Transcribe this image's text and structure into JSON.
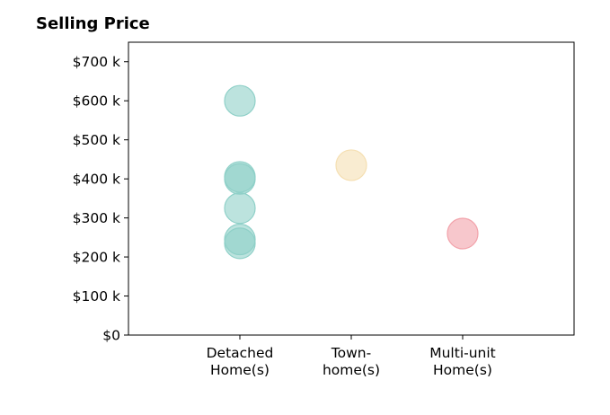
{
  "chart_data": {
    "type": "scatter",
    "title": "Selling Price",
    "xlabel": "",
    "ylabel": "",
    "categories": [
      [
        "Detached",
        "Home(s)"
      ],
      [
        "Town-",
        "home(s)"
      ],
      [
        "Multi-unit",
        "Home(s)"
      ]
    ],
    "ylim": [
      0,
      750000
    ],
    "yticks": [
      {
        "value": 0,
        "label": "$0"
      },
      {
        "value": 100000,
        "label": "$100 k"
      },
      {
        "value": 200000,
        "label": "$200 k"
      },
      {
        "value": 300000,
        "label": "$300 k"
      },
      {
        "value": 400000,
        "label": "$400 k"
      },
      {
        "value": 500000,
        "label": "$500 k"
      },
      {
        "value": 600000,
        "label": "$600 k"
      },
      {
        "value": 700000,
        "label": "$700 k"
      }
    ],
    "grid": false,
    "series": [
      {
        "category": 0,
        "color": "#8fd0c8",
        "values": [
          600000,
          405000,
          400000,
          325000,
          245000,
          235000
        ]
      },
      {
        "category": 1,
        "color": "#f5dfb2",
        "values": [
          435000
        ]
      },
      {
        "category": 2,
        "color": "#f2a2aa",
        "values": [
          260000
        ]
      }
    ]
  }
}
